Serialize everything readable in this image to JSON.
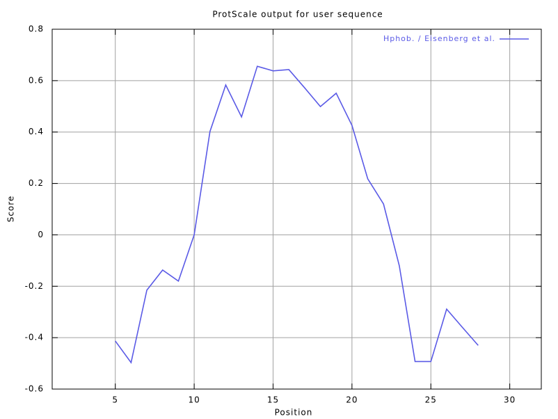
{
  "chart_data": {
    "type": "line",
    "title": "ProtScale output for user sequence",
    "x_label": "Position",
    "y_label": "Score",
    "x": [
      5,
      6,
      7,
      8,
      9,
      10,
      11,
      12,
      13,
      14,
      15,
      16,
      17,
      18,
      19,
      20,
      21,
      22,
      23,
      24,
      25,
      26,
      27,
      28
    ],
    "series": [
      {
        "name": "Hphob. / Eisenberg et al.",
        "color": "#5a5ae6",
        "values": [
          -0.413,
          -0.497,
          -0.215,
          -0.137,
          -0.18,
          0.0,
          0.402,
          0.583,
          0.459,
          0.656,
          0.638,
          0.643,
          0.572,
          0.499,
          0.551,
          0.426,
          0.218,
          0.12,
          -0.12,
          -0.493,
          -0.493,
          -0.289,
          -0.36,
          -0.43
        ]
      }
    ],
    "xlim": [
      1,
      32
    ],
    "xticks": [
      5,
      10,
      15,
      20,
      25,
      30
    ],
    "ylim": [
      -0.6,
      0.8
    ],
    "yticks": [
      -0.6,
      -0.4,
      -0.2,
      0,
      0.2,
      0.4,
      0.6,
      0.8
    ],
    "grid": true,
    "legend": "top-right"
  }
}
